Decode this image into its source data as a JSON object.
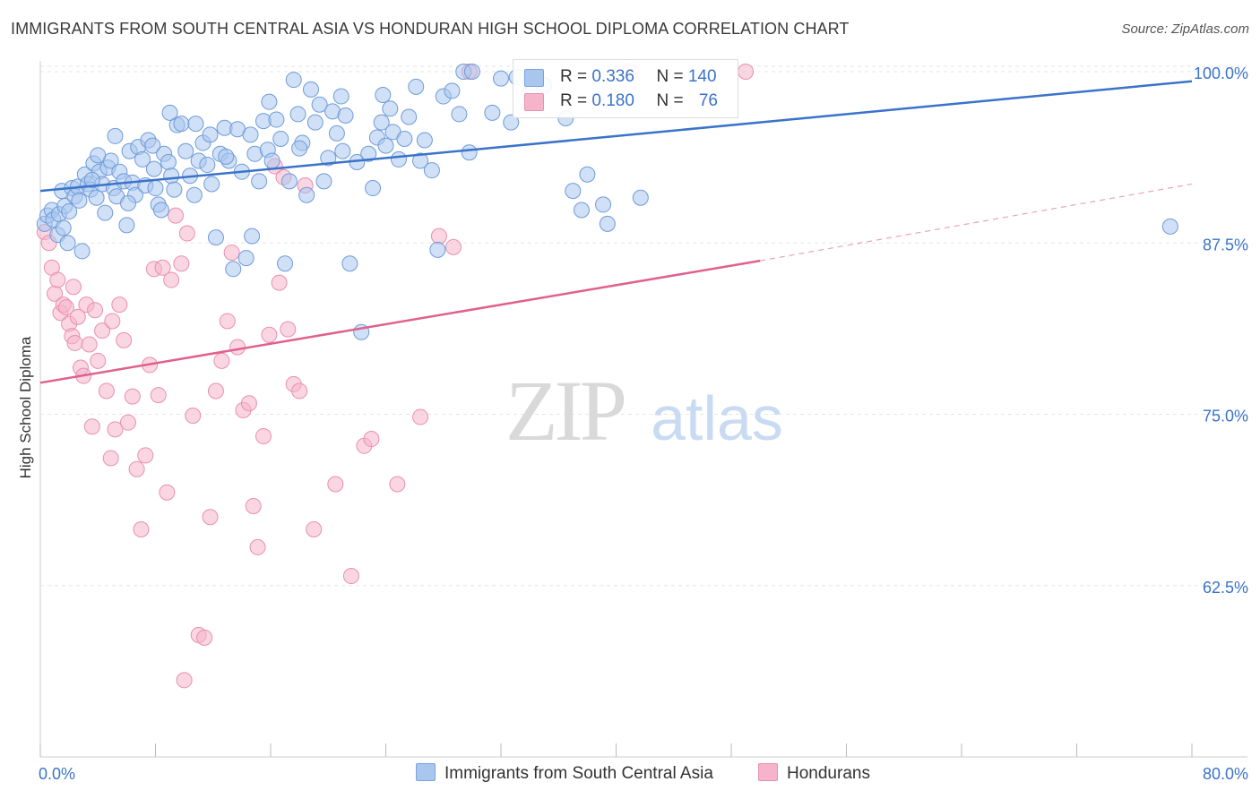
{
  "title": "IMMIGRANTS FROM SOUTH CENTRAL ASIA VS HONDURAN HIGH SCHOOL DIPLOMA CORRELATION CHART",
  "source": "Source: ZipAtlas.com",
  "watermark": {
    "zip": "ZIP",
    "atlas": "atlas"
  },
  "legend": {
    "blue": {
      "r_label": "R = ",
      "r_value": "0.336",
      "n_label": "N = ",
      "n_value": "140"
    },
    "pink": {
      "r_label": "R = ",
      "r_value": "0.180",
      "n_label": "N = ",
      "n_value": "76"
    }
  },
  "colors": {
    "blue": "#3a73c9",
    "blue_fill": "#a9c6ef",
    "pink": "#e0608e",
    "pink_fill": "#f6b4cb",
    "grid": "#e6e6e6",
    "tick_label": "#3a73c9"
  },
  "chart_data": {
    "type": "scatter",
    "title": "IMMIGRANTS FROM SOUTH CENTRAL ASIA VS HONDURAN HIGH SCHOOL DIPLOMA CORRELATION CHART",
    "xlabel": "",
    "ylabel": "High School Diploma",
    "xlim": [
      0,
      80
    ],
    "ylim": [
      50,
      100
    ],
    "x_tick_labels": [
      "0.0%",
      "80.0%"
    ],
    "y_ticks": [
      62.5,
      75.0,
      87.5,
      100.0
    ],
    "y_tick_labels": [
      "62.5%",
      "75.0%",
      "87.5%",
      "100.0%"
    ],
    "grid": "dashed horizontal",
    "legend_position": "top-center",
    "series": [
      {
        "name": "Immigrants from South Central Asia",
        "color": "#3a73c9",
        "trend": {
          "x": [
            0,
            80
          ],
          "y": [
            91.3,
            99.3
          ],
          "style": "solid"
        },
        "points": [
          [
            0.3,
            88.9
          ],
          [
            0.5,
            89.5
          ],
          [
            0.8,
            89.9
          ],
          [
            0.9,
            89.2
          ],
          [
            1.2,
            88.1
          ],
          [
            1.3,
            89.6
          ],
          [
            1.5,
            91.3
          ],
          [
            1.7,
            90.2
          ],
          [
            1.9,
            87.5
          ],
          [
            2.0,
            89.8
          ],
          [
            2.2,
            91.5
          ],
          [
            2.4,
            90.9
          ],
          [
            2.6,
            91.6
          ],
          [
            2.9,
            86.9
          ],
          [
            3.1,
            92.5
          ],
          [
            3.3,
            91.8
          ],
          [
            3.5,
            91.4
          ],
          [
            3.7,
            93.3
          ],
          [
            3.9,
            90.8
          ],
          [
            4.1,
            92.7
          ],
          [
            4.3,
            91.8
          ],
          [
            4.5,
            89.7
          ],
          [
            4.7,
            93.0
          ],
          [
            4.9,
            93.5
          ],
          [
            5.1,
            91.5
          ],
          [
            5.3,
            90.9
          ],
          [
            5.5,
            92.7
          ],
          [
            5.8,
            92.0
          ],
          [
            6.0,
            88.8
          ],
          [
            6.2,
            94.2
          ],
          [
            6.4,
            91.9
          ],
          [
            6.6,
            91.0
          ],
          [
            6.8,
            94.5
          ],
          [
            7.1,
            93.6
          ],
          [
            7.3,
            91.7
          ],
          [
            7.5,
            95.0
          ],
          [
            7.8,
            94.6
          ],
          [
            8.0,
            91.5
          ],
          [
            8.2,
            90.3
          ],
          [
            8.4,
            89.9
          ],
          [
            8.6,
            94.0
          ],
          [
            8.9,
            93.4
          ],
          [
            9.1,
            92.4
          ],
          [
            9.3,
            91.4
          ],
          [
            9.5,
            96.1
          ],
          [
            9.8,
            96.2
          ],
          [
            10.1,
            94.2
          ],
          [
            10.4,
            92.4
          ],
          [
            10.7,
            91.0
          ],
          [
            11.0,
            93.5
          ],
          [
            11.3,
            94.8
          ],
          [
            11.6,
            93.2
          ],
          [
            11.9,
            91.8
          ],
          [
            12.2,
            87.9
          ],
          [
            12.5,
            94.0
          ],
          [
            12.8,
            95.9
          ],
          [
            13.1,
            93.5
          ],
          [
            13.4,
            85.6
          ],
          [
            13.7,
            95.8
          ],
          [
            14.0,
            92.7
          ],
          [
            14.3,
            86.4
          ],
          [
            14.6,
            95.4
          ],
          [
            14.9,
            94.0
          ],
          [
            15.2,
            92.0
          ],
          [
            15.5,
            96.4
          ],
          [
            15.8,
            94.3
          ],
          [
            16.1,
            93.5
          ],
          [
            16.4,
            96.5
          ],
          [
            16.7,
            95.1
          ],
          [
            17.0,
            86.0
          ],
          [
            17.3,
            92.0
          ],
          [
            17.6,
            99.4
          ],
          [
            17.9,
            96.9
          ],
          [
            18.2,
            94.8
          ],
          [
            18.5,
            91.0
          ],
          [
            18.8,
            98.7
          ],
          [
            19.1,
            96.3
          ],
          [
            19.4,
            97.6
          ],
          [
            19.7,
            92.0
          ],
          [
            20.0,
            93.7
          ],
          [
            20.3,
            97.1
          ],
          [
            20.6,
            95.5
          ],
          [
            20.9,
            98.2
          ],
          [
            21.2,
            96.8
          ],
          [
            21.5,
            86.0
          ],
          [
            22.0,
            93.4
          ],
          [
            22.3,
            81.0
          ],
          [
            22.8,
            94.0
          ],
          [
            23.1,
            91.5
          ],
          [
            23.4,
            95.2
          ],
          [
            23.7,
            96.3
          ],
          [
            24.0,
            94.6
          ],
          [
            24.3,
            97.3
          ],
          [
            24.5,
            95.6
          ],
          [
            24.9,
            93.6
          ],
          [
            25.3,
            95.1
          ],
          [
            25.6,
            96.7
          ],
          [
            26.1,
            98.9
          ],
          [
            26.7,
            95.0
          ],
          [
            27.2,
            92.8
          ],
          [
            27.6,
            87.0
          ],
          [
            28.0,
            98.2
          ],
          [
            28.6,
            98.6
          ],
          [
            29.1,
            96.9
          ],
          [
            29.4,
            100.0
          ],
          [
            30.0,
            100.0
          ],
          [
            29.8,
            94.1
          ],
          [
            31.4,
            97.0
          ],
          [
            32.0,
            99.5
          ],
          [
            32.7,
            96.3
          ],
          [
            33.1,
            99.6
          ],
          [
            34.0,
            98.5
          ],
          [
            35.0,
            99.0
          ],
          [
            36.5,
            96.6
          ],
          [
            37.0,
            91.3
          ],
          [
            37.6,
            89.9
          ],
          [
            38.0,
            92.5
          ],
          [
            39.1,
            90.3
          ],
          [
            39.4,
            88.9
          ],
          [
            41.7,
            90.8
          ],
          [
            78.5,
            88.7
          ],
          [
            23.8,
            98.3
          ],
          [
            14.7,
            88.0
          ],
          [
            10.8,
            96.2
          ],
          [
            6.1,
            90.4
          ],
          [
            3.6,
            92.1
          ],
          [
            5.2,
            95.3
          ],
          [
            12.9,
            93.8
          ],
          [
            15.9,
            97.8
          ],
          [
            18.0,
            94.4
          ],
          [
            21.0,
            94.2
          ],
          [
            26.4,
            93.5
          ],
          [
            9.0,
            97.0
          ],
          [
            2.7,
            90.6
          ],
          [
            1.6,
            88.6
          ],
          [
            4.0,
            93.9
          ],
          [
            7.9,
            92.9
          ],
          [
            11.8,
            95.4
          ]
        ]
      },
      {
        "name": "Hondurans",
        "color": "#e0608e",
        "trend": {
          "x": [
            0,
            50
          ],
          "y": [
            77.3,
            86.2
          ],
          "x_dashed_end": 80,
          "y_dashed_end": 91.8,
          "style": "solid then dashed"
        },
        "points": [
          [
            0.3,
            88.3
          ],
          [
            0.6,
            87.5
          ],
          [
            0.8,
            85.7
          ],
          [
            1.0,
            83.8
          ],
          [
            1.2,
            84.8
          ],
          [
            1.4,
            82.4
          ],
          [
            1.6,
            83.0
          ],
          [
            1.8,
            82.8
          ],
          [
            2.0,
            81.6
          ],
          [
            2.2,
            80.7
          ],
          [
            2.4,
            80.2
          ],
          [
            2.6,
            82.1
          ],
          [
            2.8,
            78.4
          ],
          [
            3.0,
            77.8
          ],
          [
            3.2,
            83.0
          ],
          [
            3.4,
            80.1
          ],
          [
            3.6,
            74.1
          ],
          [
            3.8,
            82.6
          ],
          [
            4.0,
            78.9
          ],
          [
            4.3,
            81.1
          ],
          [
            4.6,
            76.7
          ],
          [
            4.9,
            71.8
          ],
          [
            5.2,
            73.9
          ],
          [
            5.5,
            83.0
          ],
          [
            5.8,
            80.4
          ],
          [
            6.1,
            74.4
          ],
          [
            6.4,
            76.3
          ],
          [
            6.7,
            71.0
          ],
          [
            7.0,
            66.6
          ],
          [
            7.3,
            72.0
          ],
          [
            7.6,
            78.6
          ],
          [
            7.9,
            85.6
          ],
          [
            8.2,
            76.4
          ],
          [
            8.5,
            85.7
          ],
          [
            8.8,
            69.3
          ],
          [
            9.1,
            84.8
          ],
          [
            9.4,
            89.5
          ],
          [
            9.8,
            86.0
          ],
          [
            10.2,
            88.2
          ],
          [
            10.6,
            74.9
          ],
          [
            11.0,
            58.9
          ],
          [
            11.4,
            58.7
          ],
          [
            11.8,
            67.5
          ],
          [
            12.2,
            76.7
          ],
          [
            12.6,
            78.9
          ],
          [
            13.0,
            81.8
          ],
          [
            13.3,
            86.8
          ],
          [
            13.7,
            79.9
          ],
          [
            14.1,
            75.3
          ],
          [
            14.5,
            75.8
          ],
          [
            14.8,
            68.3
          ],
          [
            15.1,
            65.3
          ],
          [
            15.5,
            73.4
          ],
          [
            15.9,
            80.8
          ],
          [
            16.3,
            93.1
          ],
          [
            16.6,
            84.6
          ],
          [
            16.9,
            92.3
          ],
          [
            17.2,
            81.2
          ],
          [
            17.6,
            77.2
          ],
          [
            18.0,
            76.7
          ],
          [
            18.4,
            91.7
          ],
          [
            19.0,
            66.6
          ],
          [
            20.5,
            69.9
          ],
          [
            21.6,
            63.2
          ],
          [
            22.5,
            72.7
          ],
          [
            23.0,
            73.2
          ],
          [
            24.8,
            69.9
          ],
          [
            26.4,
            74.8
          ],
          [
            27.7,
            88.0
          ],
          [
            28.7,
            87.2
          ],
          [
            29.8,
            100.0
          ],
          [
            41.0,
            100.0
          ],
          [
            49.0,
            100.0
          ],
          [
            10.0,
            55.6
          ],
          [
            5.0,
            81.8
          ],
          [
            2.3,
            84.3
          ]
        ]
      }
    ]
  },
  "bottom_legend": [
    {
      "label": "Immigrants from South Central Asia"
    },
    {
      "label": "Hondurans"
    }
  ]
}
